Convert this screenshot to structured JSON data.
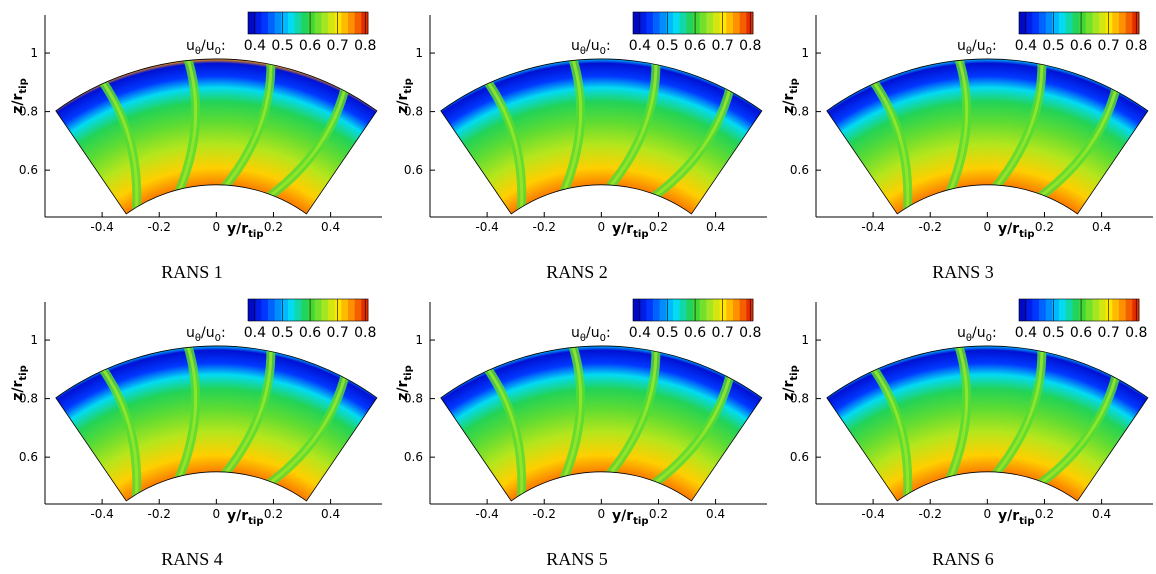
{
  "chart_data": [
    {
      "type": "contour",
      "caption": "RANS 1",
      "xlabel": [
        "y/r",
        "tip"
      ],
      "ylabel": [
        "z/r",
        "tip"
      ],
      "xlim": [
        -0.6,
        0.58
      ],
      "xticks": [
        -0.4,
        -0.2,
        0,
        0.2,
        0.4
      ],
      "ylim": [
        0.44,
        1.13
      ],
      "yticks": [
        0.6,
        0.8,
        1
      ],
      "colorbar": {
        "label": [
          "u",
          "θ",
          "/u",
          "0",
          ":"
        ],
        "lim": [
          0.375,
          0.81
        ],
        "ticks": [
          0.4,
          0.5,
          0.6,
          0.7,
          0.8
        ]
      }
    },
    {
      "type": "contour",
      "caption": "RANS 2",
      "xlabel": [
        "y/r",
        "tip"
      ],
      "ylabel": [
        "z/r",
        "tip"
      ],
      "xlim": [
        -0.6,
        0.58
      ],
      "xticks": [
        -0.4,
        -0.2,
        0,
        0.2,
        0.4
      ],
      "ylim": [
        0.44,
        1.13
      ],
      "yticks": [
        0.6,
        0.8,
        1
      ],
      "colorbar": {
        "label": [
          "u",
          "θ",
          "/u",
          "0",
          ":"
        ],
        "lim": [
          0.375,
          0.81
        ],
        "ticks": [
          0.4,
          0.5,
          0.6,
          0.7,
          0.8
        ]
      }
    },
    {
      "type": "contour",
      "caption": "RANS 3",
      "xlabel": [
        "y/r",
        "tip"
      ],
      "ylabel": [
        "z/r",
        "tip"
      ],
      "xlim": [
        -0.6,
        0.58
      ],
      "xticks": [
        -0.4,
        -0.2,
        0,
        0.2,
        0.4
      ],
      "ylim": [
        0.44,
        1.13
      ],
      "yticks": [
        0.6,
        0.8,
        1
      ],
      "colorbar": {
        "label": [
          "u",
          "θ",
          "/u",
          "0",
          ":"
        ],
        "lim": [
          0.375,
          0.81
        ],
        "ticks": [
          0.4,
          0.5,
          0.6,
          0.7,
          0.8
        ]
      }
    },
    {
      "type": "contour",
      "caption": "RANS 4",
      "xlabel": [
        "y/r",
        "tip"
      ],
      "ylabel": [
        "z/r",
        "tip"
      ],
      "xlim": [
        -0.6,
        0.58
      ],
      "xticks": [
        -0.4,
        -0.2,
        0,
        0.2,
        0.4
      ],
      "ylim": [
        0.44,
        1.13
      ],
      "yticks": [
        0.6,
        0.8,
        1
      ],
      "colorbar": {
        "label": [
          "u",
          "θ",
          "/u",
          "0",
          ":"
        ],
        "lim": [
          0.375,
          0.81
        ],
        "ticks": [
          0.4,
          0.5,
          0.6,
          0.7,
          0.8
        ]
      }
    },
    {
      "type": "contour",
      "caption": "RANS 5",
      "xlabel": [
        "y/r",
        "tip"
      ],
      "ylabel": [
        "z/r",
        "tip"
      ],
      "xlim": [
        -0.6,
        0.58
      ],
      "xticks": [
        -0.4,
        -0.2,
        0,
        0.2,
        0.4
      ],
      "ylim": [
        0.44,
        1.13
      ],
      "yticks": [
        0.6,
        0.8,
        1
      ],
      "colorbar": {
        "label": [
          "u",
          "θ",
          "/u",
          "0",
          ":"
        ],
        "lim": [
          0.375,
          0.81
        ],
        "ticks": [
          0.4,
          0.5,
          0.6,
          0.7,
          0.8
        ]
      }
    },
    {
      "type": "contour",
      "caption": "RANS 6",
      "xlabel": [
        "y/r",
        "tip"
      ],
      "ylabel": [
        "z/r",
        "tip"
      ],
      "xlim": [
        -0.6,
        0.58
      ],
      "xticks": [
        -0.4,
        -0.2,
        0,
        0.2,
        0.4
      ],
      "ylim": [
        0.44,
        1.13
      ],
      "yticks": [
        0.6,
        0.8,
        1
      ],
      "colorbar": {
        "label": [
          "u",
          "θ",
          "/u",
          "0",
          ":"
        ],
        "lim": [
          0.375,
          0.81
        ],
        "ticks": [
          0.4,
          0.5,
          0.6,
          0.7,
          0.8
        ]
      }
    }
  ]
}
